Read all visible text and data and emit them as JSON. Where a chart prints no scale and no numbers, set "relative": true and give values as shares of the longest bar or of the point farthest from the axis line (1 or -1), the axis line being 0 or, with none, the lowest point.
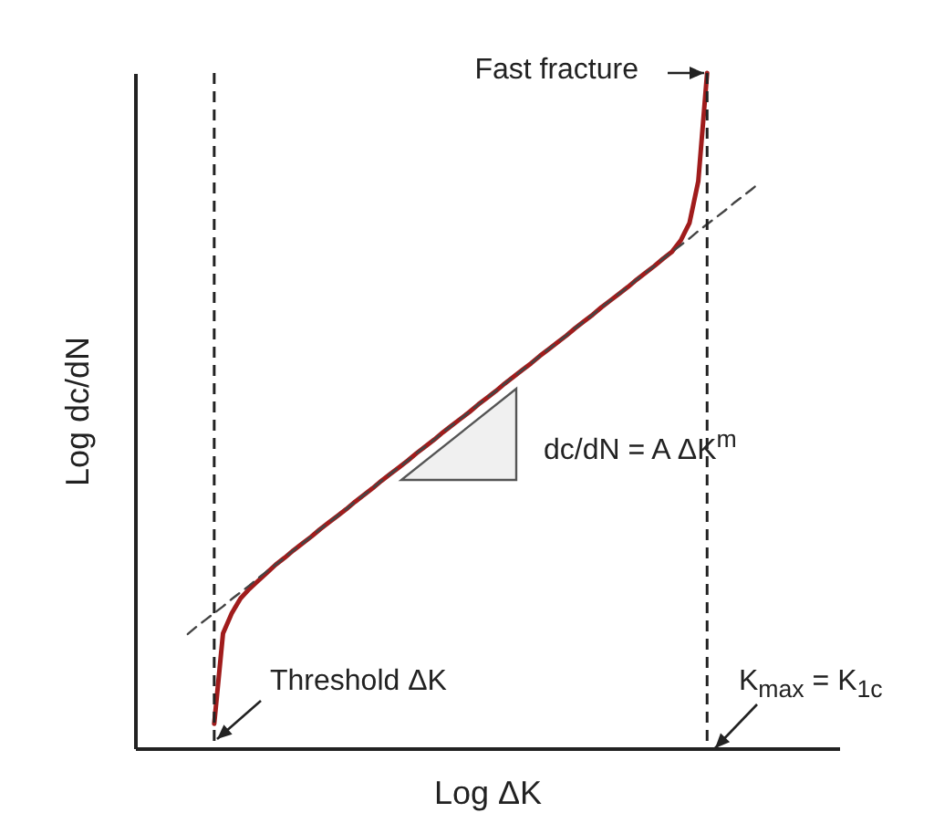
{
  "chart_data": {
    "type": "line",
    "relative": true,
    "xlabel": "Log ΔK",
    "ylabel": "Log dc/dN",
    "categories": [
      null,
      null,
      null,
      null,
      null,
      null,
      null,
      null,
      null,
      null,
      null,
      null,
      null,
      null,
      null,
      null,
      null,
      null,
      null,
      null,
      null,
      null,
      null,
      null,
      null,
      null,
      null,
      null,
      null,
      null,
      null,
      null,
      null,
      null,
      null,
      null,
      null,
      null,
      null,
      null,
      null,
      null,
      null,
      null,
      null,
      null,
      null,
      null,
      null,
      null,
      null,
      null,
      null,
      null,
      null,
      null,
      null,
      null,
      null,
      null,
      null,
      null,
      null,
      null,
      null,
      null,
      null,
      null,
      null,
      null,
      null,
      null,
      null,
      null,
      null,
      null,
      null,
      null,
      null,
      null,
      null
    ],
    "series": [
      {
        "color": "#a01c1c",
        "values": [
          null,
          null,
          null,
          null,
          null,
          null,
          null,
          null,
          null,
          0.036,
          0.17,
          0.2,
          0.222,
          0.236,
          0.248,
          0.26,
          0.272,
          0.282,
          0.293,
          0.303,
          0.313,
          0.324,
          0.334,
          0.344,
          0.354,
          0.365,
          0.375,
          0.385,
          0.396,
          0.406,
          0.416,
          0.426,
          0.437,
          0.447,
          0.457,
          0.468,
          0.478,
          0.488,
          0.498,
          0.509,
          0.519,
          0.529,
          0.54,
          0.55,
          0.56,
          0.57,
          0.581,
          0.591,
          0.601,
          0.611,
          0.622,
          0.632,
          0.642,
          0.653,
          0.663,
          0.673,
          0.683,
          0.694,
          0.704,
          0.714,
          0.725,
          0.735,
          0.752,
          0.778,
          0.84,
          1,
          null,
          null,
          null,
          null,
          null,
          null,
          null,
          null,
          null,
          null,
          null,
          null,
          null,
          null,
          null
        ]
      },
      {
        "type": "line",
        "line_style": "dashed",
        "color": "#444444",
        "values": [
          null,
          null,
          null,
          null,
          null,
          null,
          0.169,
          0.18,
          0.19,
          0.2,
          0.21,
          0.221,
          0.231,
          0.241,
          0.252,
          0.262,
          0.272,
          0.282,
          0.293,
          0.303,
          0.313,
          0.324,
          0.334,
          0.344,
          0.354,
          0.365,
          0.375,
          0.385,
          0.396,
          0.406,
          0.416,
          0.426,
          0.437,
          0.447,
          0.457,
          0.468,
          0.478,
          0.488,
          0.498,
          0.509,
          0.519,
          0.529,
          0.54,
          0.55,
          0.56,
          0.57,
          0.581,
          0.591,
          0.601,
          0.611,
          0.622,
          0.632,
          0.642,
          0.653,
          0.663,
          0.673,
          0.683,
          0.694,
          0.704,
          0.714,
          0.725,
          0.735,
          0.745,
          0.755,
          0.766,
          0.776,
          0.786,
          0.796,
          0.807,
          0.817,
          0.827,
          0.838,
          null,
          null,
          null,
          null,
          null,
          null,
          null,
          null,
          null
        ]
      }
    ],
    "annotations": [
      "Fast fracture",
      "dc/dN = A ΔK$^{m}$",
      "Threshold ΔK",
      "K$_{max}$ = K$_{1c}$"
    ]
  }
}
